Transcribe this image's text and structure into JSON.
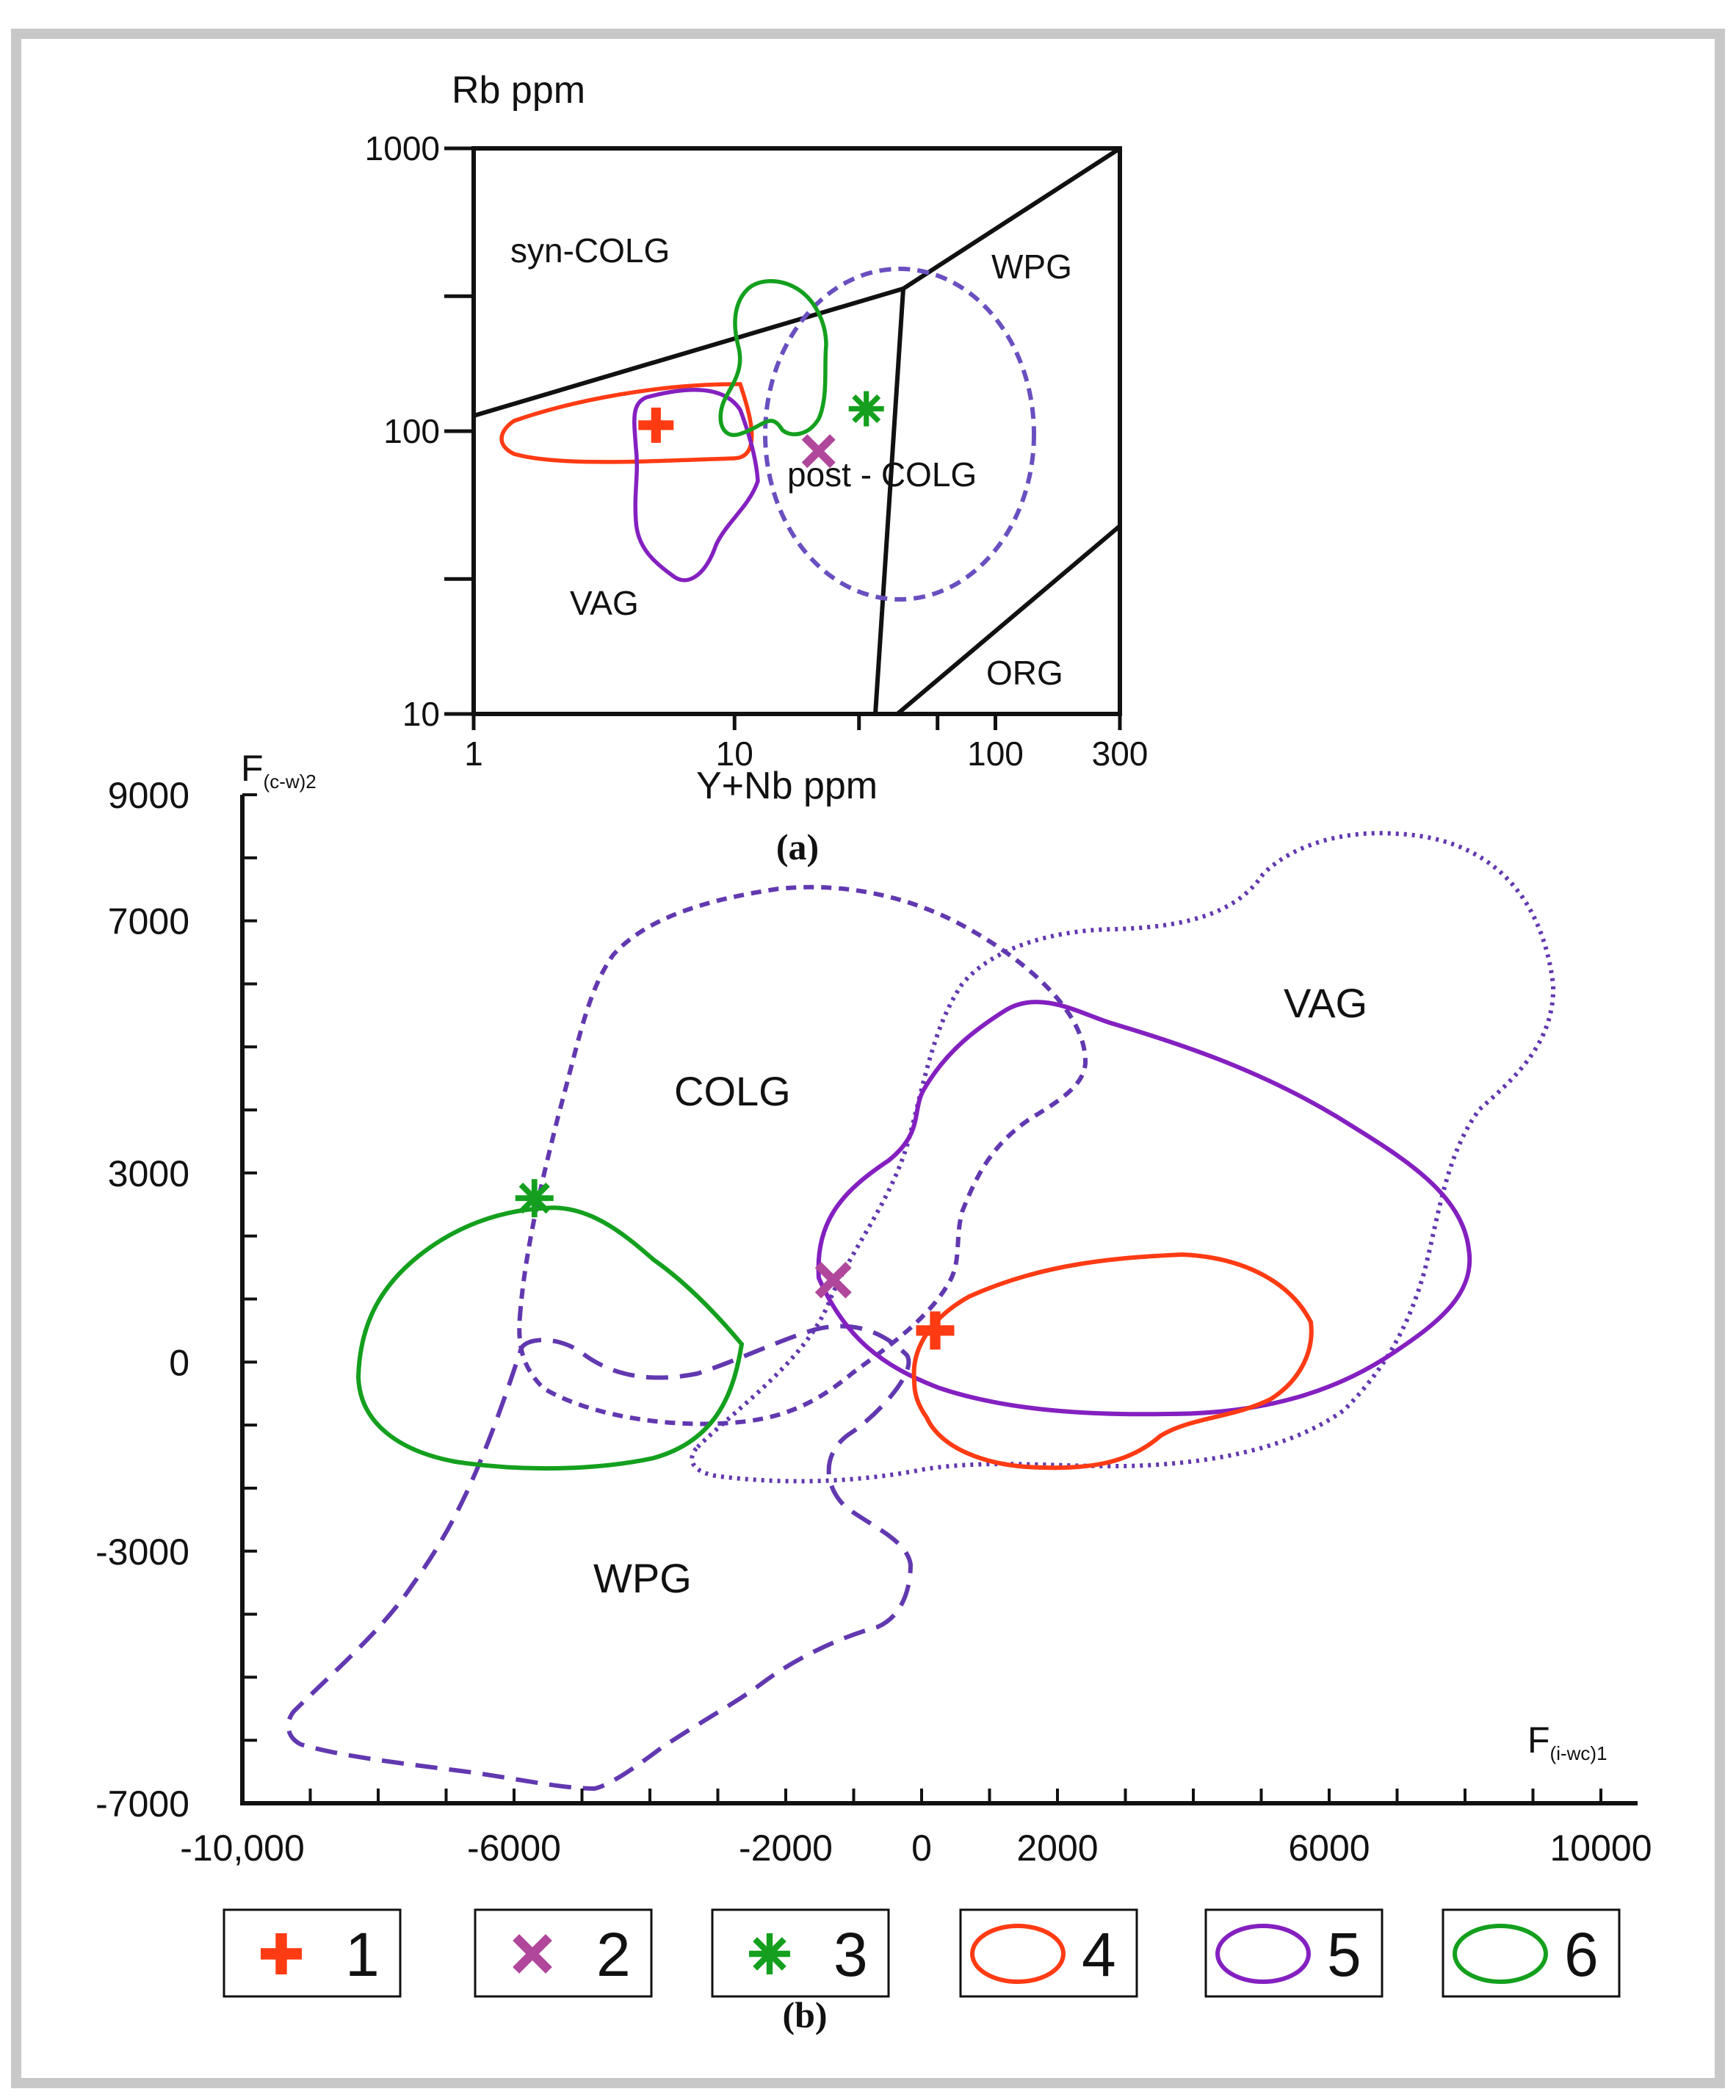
{
  "colors": {
    "frame": "#c8c8c8",
    "axis": "#111111",
    "red": "#ff3b14",
    "magenta": "#b0479b",
    "green": "#14a01e",
    "purple": "#8420c0",
    "field_purple": "#6a4fc0",
    "dash_purple": "#6238b0"
  },
  "chart_data": [
    {
      "id": "a",
      "type": "scatter",
      "scale": "log-log",
      "caption": "(a)",
      "ylabel": "Rb ppm",
      "xlabel": "Y+Nb ppm",
      "xlim": [
        1,
        300
      ],
      "ylim": [
        10,
        1000
      ],
      "xticks": [
        {
          "value": 1,
          "label": "1"
        },
        {
          "value": 10,
          "label": "10"
        },
        {
          "value": 100,
          "label": "100"
        },
        {
          "value": 300,
          "label": "300"
        }
      ],
      "yticks": [
        {
          "value": 10,
          "label": "10"
        },
        {
          "value": 100,
          "label": "100"
        },
        {
          "value": 1000,
          "label": "1000"
        }
      ],
      "field_labels": [
        "syn-COLG",
        "WPG",
        "post - COLG",
        "VAG",
        "ORG"
      ],
      "points": [
        {
          "series": "1",
          "symbol": "plus",
          "x": 5,
          "y": 105
        },
        {
          "series": "2",
          "symbol": "cross",
          "x": 21,
          "y": 85
        },
        {
          "series": "3",
          "symbol": "star",
          "x": 32,
          "y": 120
        }
      ],
      "contours": [
        "4",
        "5",
        "6",
        "post-COLG field"
      ]
    },
    {
      "id": "b",
      "type": "scatter",
      "caption": "(b)",
      "ylabel": "F(c-w)2",
      "ylabel_main": "F",
      "ylabel_sub": "(c-w)2",
      "xlabel": "F(i-wc)1",
      "xlabel_main": "F",
      "xlabel_sub": "(i-wc)1",
      "xlim": [
        -10000,
        10000
      ],
      "ylim": [
        -7000,
        9000
      ],
      "xticks": [
        {
          "value": -10000,
          "label": "-10,000"
        },
        {
          "value": -6000,
          "label": "-6000"
        },
        {
          "value": -2000,
          "label": "-2000"
        },
        {
          "value": 0,
          "label": "0"
        },
        {
          "value": 2000,
          "label": "2000"
        },
        {
          "value": 6000,
          "label": "6000"
        },
        {
          "value": 10000,
          "label": "10000"
        }
      ],
      "yticks": [
        {
          "value": 9000,
          "label": "9000"
        },
        {
          "value": 7000,
          "label": "7000"
        },
        {
          "value": 3000,
          "label": "3000"
        },
        {
          "value": 0,
          "label": "0"
        },
        {
          "value": -3000,
          "label": "-3000"
        },
        {
          "value": -7000,
          "label": "-7000"
        }
      ],
      "field_labels": [
        "COLG",
        "VAG",
        "WPG"
      ],
      "points": [
        {
          "series": "1",
          "symbol": "plus",
          "x": 200,
          "y": 500
        },
        {
          "series": "2",
          "symbol": "cross",
          "x": -1300,
          "y": 1300
        },
        {
          "series": "3",
          "symbol": "star",
          "x": -5700,
          "y": 2600
        }
      ],
      "contours": [
        "4",
        "5",
        "6",
        "COLG field",
        "VAG field",
        "WPG field"
      ]
    }
  ],
  "legend": [
    {
      "symbol": "plus",
      "label": "1"
    },
    {
      "symbol": "cross",
      "label": "2"
    },
    {
      "symbol": "star",
      "label": "3"
    },
    {
      "symbol": "loop-red",
      "label": "4"
    },
    {
      "symbol": "loop-purple",
      "label": "5"
    },
    {
      "symbol": "loop-green",
      "label": "6"
    }
  ]
}
